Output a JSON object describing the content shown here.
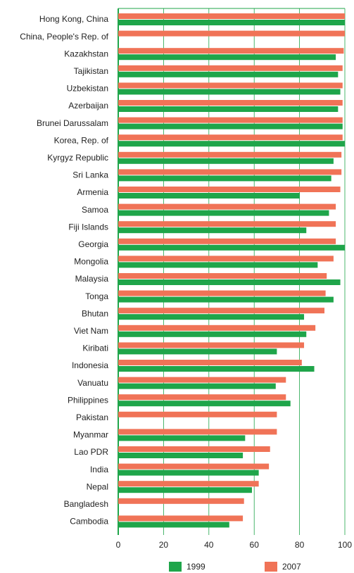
{
  "chart_data": {
    "type": "hbar",
    "categories": [
      "Hong Kong, China",
      "China, People's Rep. of",
      "Kazakhstan",
      "Tajikistan",
      "Uzbekistan",
      "Azerbaijan",
      "Brunei Darussalam",
      "Korea, Rep. of",
      "Kyrgyz Republic",
      "Sri Lanka",
      "Armenia",
      "Samoa",
      "Fiji Islands",
      "Georgia",
      "Mongolia",
      "Malaysia",
      "Tonga",
      "Bhutan",
      "Viet Nam",
      "Kiribati",
      "Indonesia",
      "Vanuatu",
      "Philippines",
      "Pakistan",
      "Myanmar",
      "Lao PDR",
      "India",
      "Nepal",
      "Bangladesh",
      "Cambodia"
    ],
    "series": [
      {
        "name": "2007",
        "color": "#f07357",
        "values": [
          100,
          100,
          99.5,
          99,
          99,
          99,
          99,
          99,
          98.5,
          98.5,
          98,
          96,
          96,
          96,
          95,
          92,
          91.5,
          91,
          87,
          82,
          81,
          74,
          74,
          70,
          70,
          67,
          66.5,
          62,
          55.5,
          55
        ]
      },
      {
        "name": "1999",
        "color": "#1fa54a",
        "values": [
          100,
          null,
          96,
          97,
          98,
          97,
          99,
          100,
          95,
          94,
          80,
          93,
          83,
          100,
          88,
          98,
          95,
          82,
          83,
          70,
          86.5,
          69.5,
          76,
          null,
          56,
          55,
          62,
          59,
          null,
          49
        ]
      }
    ],
    "xlim": [
      0,
      100
    ],
    "xticks": [
      0,
      20,
      40,
      60,
      80,
      100
    ],
    "grid": true
  }
}
